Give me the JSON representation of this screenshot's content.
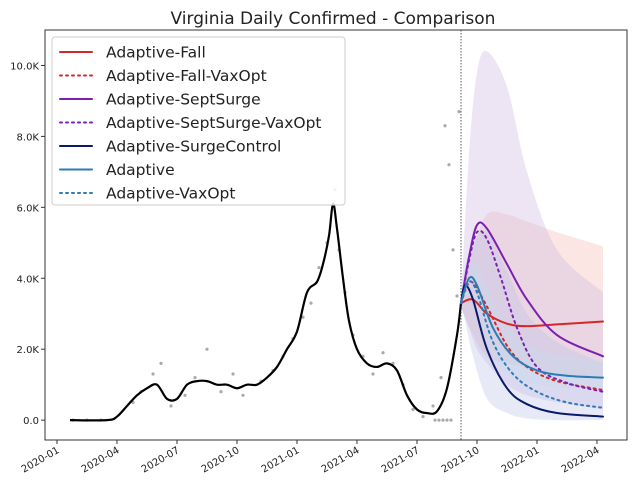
{
  "chart_data": {
    "type": "line",
    "title": "Virginia Daily Confirmed - Comparison",
    "xlabel": "",
    "ylabel": "",
    "x_unit": "months since 2020-01",
    "xlim": [
      -0.6,
      28.5
    ],
    "ylim": [
      -0.56,
      11.0
    ],
    "y_unit": "thousands",
    "yticks": [
      {
        "v": 0,
        "label": "0.0"
      },
      {
        "v": 2,
        "label": "2.0K"
      },
      {
        "v": 4,
        "label": "4.0K"
      },
      {
        "v": 6,
        "label": "6.0K"
      },
      {
        "v": 8,
        "label": "8.0K"
      },
      {
        "v": 10,
        "label": "10.0K"
      }
    ],
    "xticks": [
      {
        "v": 0,
        "label": "2020-01"
      },
      {
        "v": 3,
        "label": "2020-04"
      },
      {
        "v": 6,
        "label": "2020-07"
      },
      {
        "v": 9,
        "label": "2020-10"
      },
      {
        "v": 12,
        "label": "2021-01"
      },
      {
        "v": 15,
        "label": "2021-04"
      },
      {
        "v": 18,
        "label": "2021-07"
      },
      {
        "v": 21,
        "label": "2021-10"
      },
      {
        "v": 24,
        "label": "2022-01"
      },
      {
        "v": 27,
        "label": "2022-04"
      }
    ],
    "forecast_start": 20.2,
    "grid": false,
    "legend_position": "top-left",
    "observed": {
      "x": [
        0.65,
        2.5,
        3.0,
        3.5,
        4.0,
        4.5,
        5.0,
        5.5,
        6.0,
        6.5,
        7.0,
        7.5,
        8.0,
        8.5,
        9.0,
        9.5,
        10.0,
        10.5,
        11.0,
        11.5,
        12.0,
        12.5,
        13.0,
        13.3,
        13.6,
        13.8,
        14.0,
        14.3,
        14.6,
        15.0,
        15.5,
        16.0,
        16.5,
        17.0,
        17.5,
        18.0,
        18.5,
        19.0,
        19.5,
        20.0,
        20.2
      ],
      "y": [
        0,
        0,
        0.1,
        0.4,
        0.7,
        0.9,
        1.0,
        0.6,
        0.6,
        1.0,
        1.1,
        1.1,
        1.0,
        1.0,
        0.9,
        1.0,
        1.0,
        1.2,
        1.5,
        2.0,
        2.5,
        3.6,
        3.9,
        4.4,
        5.2,
        6.1,
        5.4,
        4.0,
        2.8,
        2.0,
        1.6,
        1.5,
        1.6,
        1.4,
        0.7,
        0.3,
        0.2,
        0.25,
        0.9,
        2.4,
        3.3
      ]
    },
    "scatter": {
      "x": [
        0.8,
        1.5,
        2.2,
        3.8,
        4.2,
        4.8,
        5.2,
        5.7,
        6.4,
        6.9,
        7.5,
        8.2,
        8.8,
        9.3,
        10.2,
        10.8,
        11.3,
        11.8,
        12.3,
        12.7,
        13.1,
        13.5,
        13.9,
        14.1,
        14.4,
        14.8,
        15.3,
        15.8,
        16.3,
        16.8,
        17.3,
        17.8,
        18.3,
        18.8,
        19.2,
        19.4,
        19.6,
        19.8,
        20.0,
        20.1,
        18.9,
        19.1,
        19.3,
        19.5,
        19.7
      ],
      "y": [
        0,
        0,
        0,
        0.5,
        0.8,
        1.3,
        1.6,
        0.4,
        0.7,
        1.2,
        2.0,
        0.8,
        1.3,
        0.7,
        1.1,
        1.4,
        1.8,
        2.3,
        2.9,
        3.3,
        4.3,
        5.0,
        6.5,
        4.8,
        3.6,
        2.4,
        1.8,
        1.3,
        1.9,
        1.6,
        1.0,
        0.3,
        0.1,
        0.4,
        1.2,
        8.3,
        7.2,
        4.8,
        3.5,
        8.7,
        0,
        0,
        0,
        0,
        0
      ]
    },
    "series": [
      {
        "name": "Adaptive-Fall",
        "color": "#d62728",
        "dash": false,
        "x": [
          20.2,
          20.8,
          21.5,
          22.5,
          23.5,
          25,
          27.3
        ],
        "y": [
          3.3,
          3.4,
          3.0,
          2.72,
          2.65,
          2.7,
          2.78
        ],
        "band": {
          "color": "#f4b6b0",
          "upper": [
            3.4,
            4.8,
            5.8,
            5.8,
            5.6,
            5.3,
            4.9
          ],
          "lower": [
            3.2,
            2.4,
            1.8,
            1.6,
            1.5,
            1.3,
            1.2
          ]
        }
      },
      {
        "name": "Adaptive-Fall-VaxOpt",
        "color": "#d62728",
        "dash": true,
        "x": [
          20.2,
          20.7,
          21.5,
          22.5,
          23.5,
          25,
          27.3
        ],
        "y": [
          3.3,
          3.9,
          3.2,
          2.1,
          1.5,
          1.1,
          0.85
        ]
      },
      {
        "name": "Adaptive-SeptSurge",
        "color": "#7b1fb2",
        "dash": false,
        "x": [
          20.2,
          20.6,
          21.0,
          21.5,
          22.5,
          23.5,
          25,
          27.3
        ],
        "y": [
          3.3,
          4.6,
          5.5,
          5.4,
          4.4,
          3.4,
          2.4,
          1.8
        ],
        "band": {
          "color": "#cbb4e0",
          "upper": [
            3.4,
            7.5,
            9.8,
            10.4,
            9.4,
            7.0,
            4.8,
            3.6
          ],
          "lower": [
            3.2,
            2.6,
            2.0,
            1.6,
            1.0,
            0.7,
            0.5,
            0.3
          ]
        }
      },
      {
        "name": "Adaptive-SeptSurge-VaxOpt",
        "color": "#7b1fb2",
        "dash": true,
        "x": [
          20.2,
          20.6,
          21.0,
          21.5,
          22.2,
          23,
          24,
          25.5,
          27.3
        ],
        "y": [
          3.3,
          4.5,
          5.3,
          5.1,
          4.0,
          2.6,
          1.5,
          1.05,
          0.8
        ]
      },
      {
        "name": "Adaptive-SurgeControl",
        "color": "#0a1a6b",
        "dash": false,
        "x": [
          20.2,
          20.4,
          20.8,
          21.5,
          22.5,
          23.5,
          25,
          27.3
        ],
        "y": [
          3.3,
          3.8,
          3.4,
          2.0,
          0.9,
          0.45,
          0.2,
          0.1
        ],
        "band": {
          "color": "#b9c3e6",
          "upper": [
            3.4,
            4.3,
            5.0,
            5.3,
            4.2,
            3.0,
            2.2,
            1.6
          ],
          "lower": [
            3.2,
            2.8,
            1.8,
            0.6,
            0.2,
            0.05,
            0.0,
            0.0
          ]
        }
      },
      {
        "name": "Adaptive",
        "color": "#2e7bb6",
        "dash": false,
        "x": [
          20.2,
          20.6,
          21.0,
          21.8,
          22.8,
          24,
          25.5,
          27.3
        ],
        "y": [
          3.3,
          4.0,
          3.8,
          2.6,
          1.8,
          1.4,
          1.25,
          1.2
        ],
        "band": {
          "color": "#c6dcef",
          "upper": [
            3.4,
            4.2,
            4.4,
            3.4,
            2.5,
            2.0,
            1.8,
            1.7
          ],
          "lower": [
            3.2,
            3.5,
            3.0,
            1.8,
            1.2,
            1.0,
            0.9,
            0.9
          ]
        }
      },
      {
        "name": "Adaptive-VaxOpt",
        "color": "#2e7bb6",
        "dash": true,
        "x": [
          20.2,
          20.6,
          21.0,
          21.8,
          22.8,
          24,
          25.5,
          27.3
        ],
        "y": [
          3.3,
          3.9,
          3.6,
          2.2,
          1.3,
          0.8,
          0.5,
          0.35
        ]
      }
    ]
  }
}
